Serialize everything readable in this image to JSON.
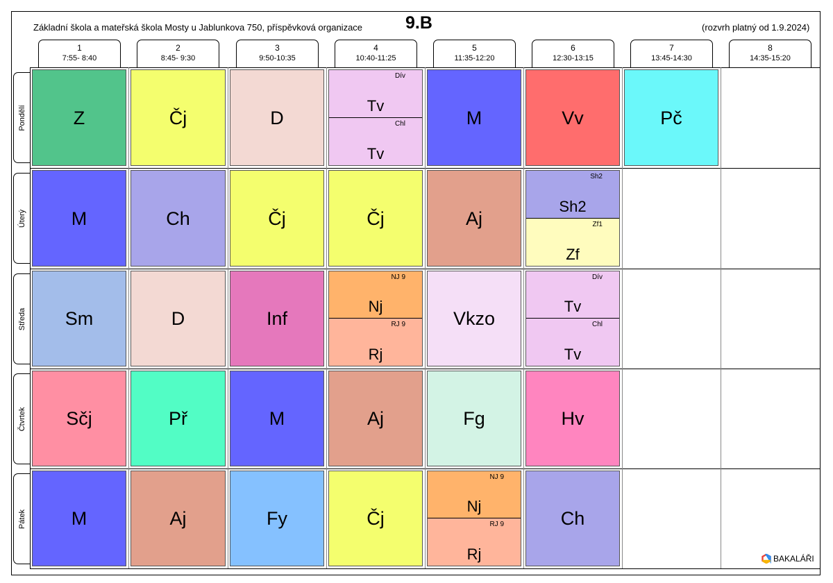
{
  "header": {
    "school": "Základní škola a mateřská škola Mosty u Jablunkova 750, příspěvková organizace",
    "class_name": "9.B",
    "validity": "(rozvrh platný od 1.9.2024)"
  },
  "periods": [
    {
      "num": "1",
      "time": "7:55- 8:40"
    },
    {
      "num": "2",
      "time": "8:45- 9:30"
    },
    {
      "num": "3",
      "time": "9:50-10:35"
    },
    {
      "num": "4",
      "time": "10:40-11:25"
    },
    {
      "num": "5",
      "time": "11:35-12:20"
    },
    {
      "num": "6",
      "time": "12:30-13:15"
    },
    {
      "num": "7",
      "time": "13:45-14:30"
    },
    {
      "num": "8",
      "time": "14:35-15:20"
    }
  ],
  "days": [
    "Pondělí",
    "Úterý",
    "Středa",
    "Čtvrtek",
    "Pátek"
  ],
  "lessons": {
    "mon": [
      {
        "subject": "Z",
        "color": "#52C48B"
      },
      {
        "subject": "Čj",
        "color": "#F4FE6E"
      },
      {
        "subject": "D",
        "color": "#F3D9D3"
      },
      {
        "split": [
          {
            "group": "Dív",
            "subject": "Tv",
            "color": "#F0C8F2"
          },
          {
            "group": "Chl",
            "subject": "Tv",
            "color": "#F0C8F2"
          }
        ]
      },
      {
        "subject": "M",
        "color": "#6465FF"
      },
      {
        "subject": "Vv",
        "color": "#FF6D6D"
      },
      {
        "subject": "Pč",
        "color": "#6BF8FA"
      }
    ],
    "tue": [
      {
        "subject": "M",
        "color": "#6465FF"
      },
      {
        "subject": "Ch",
        "color": "#A8A5EA"
      },
      {
        "subject": "Čj",
        "color": "#F4FE6E"
      },
      {
        "subject": "Čj",
        "color": "#F4FE6E"
      },
      {
        "subject": "Aj",
        "color": "#E2A08C"
      },
      {
        "split": [
          {
            "group": "Sh2",
            "subject": "Sh2",
            "color": "#A8A5EA"
          },
          {
            "group": "Zf1",
            "subject": "Zf",
            "color": "#FFFCBE"
          }
        ]
      }
    ],
    "wed": [
      {
        "subject": "Sm",
        "color": "#A3BDEA"
      },
      {
        "subject": "D",
        "color": "#F3D9D3"
      },
      {
        "subject": "Inf",
        "color": "#E578BC"
      },
      {
        "split": [
          {
            "group": "NJ 9",
            "subject": "Nj",
            "color": "#FFB36B"
          },
          {
            "group": "RJ 9",
            "subject": "Rj",
            "color": "#FFB59B"
          }
        ]
      },
      {
        "subject": "Vkzo",
        "color": "#F5DFF7"
      },
      {
        "split": [
          {
            "group": "Dív",
            "subject": "Tv",
            "color": "#F0C8F2"
          },
          {
            "group": "Chl",
            "subject": "Tv",
            "color": "#F0C8F2"
          }
        ]
      }
    ],
    "thu": [
      {
        "subject": "Sčj",
        "color": "#FF8FA3"
      },
      {
        "subject": "Př",
        "color": "#52FDC5"
      },
      {
        "subject": "M",
        "color": "#6465FF"
      },
      {
        "subject": "Aj",
        "color": "#E2A08C"
      },
      {
        "subject": "Fg",
        "color": "#D3F3E5"
      },
      {
        "subject": "Hv",
        "color": "#FF85BF"
      }
    ],
    "fri": [
      {
        "subject": "M",
        "color": "#6465FF"
      },
      {
        "subject": "Aj",
        "color": "#E2A08C"
      },
      {
        "subject": "Fy",
        "color": "#85C1FF"
      },
      {
        "subject": "Čj",
        "color": "#F4FE6E"
      },
      {
        "split": [
          {
            "group": "NJ 9",
            "subject": "Nj",
            "color": "#FFB36B"
          },
          {
            "group": "RJ 9",
            "subject": "Rj",
            "color": "#FFB59B"
          }
        ]
      },
      {
        "subject": "Ch",
        "color": "#A8A5EA"
      }
    ]
  },
  "footer": {
    "brand": "BAKALÁŘI",
    "logo_icon": "bakalari-logo-icon"
  }
}
